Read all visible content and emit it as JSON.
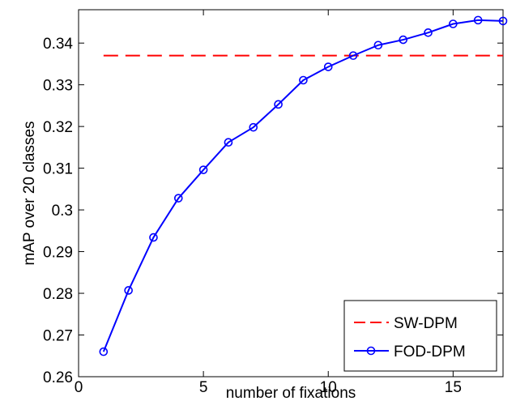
{
  "chart_data": {
    "type": "line",
    "title": "",
    "xlabel": "number of fixations",
    "ylabel": "mAP over 20 classes",
    "xlim": [
      0,
      17
    ],
    "ylim": [
      0.26,
      0.348
    ],
    "xticks": [
      0,
      5,
      10,
      15
    ],
    "yticks": [
      0.26,
      0.27,
      0.28,
      0.29,
      0.3,
      0.31,
      0.32,
      0.33,
      0.34
    ],
    "xtick_labels": [
      "0",
      "5",
      "10",
      "15"
    ],
    "ytick_labels": [
      "0.26",
      "0.27",
      "0.28",
      "0.29",
      "0.3",
      "0.31",
      "0.32",
      "0.33",
      "0.34"
    ],
    "grid": false,
    "legend_position": "bottom-right",
    "series": [
      {
        "name": "SW-DPM",
        "style": "dashed",
        "marker": "none",
        "color": "#ff0000",
        "x": [
          1,
          17
        ],
        "y": [
          0.337,
          0.337
        ]
      },
      {
        "name": "FOD-DPM",
        "style": "solid",
        "marker": "circle",
        "color": "#0000ff",
        "x": [
          1,
          2,
          3,
          4,
          5,
          6,
          7,
          8,
          9,
          10,
          11,
          12,
          13,
          14,
          15,
          16,
          17
        ],
        "y": [
          0.266,
          0.2807,
          0.2934,
          0.3028,
          0.3096,
          0.3162,
          0.3198,
          0.3253,
          0.3311,
          0.3343,
          0.337,
          0.3395,
          0.3408,
          0.3425,
          0.3446,
          0.3455,
          0.3453
        ]
      }
    ]
  }
}
